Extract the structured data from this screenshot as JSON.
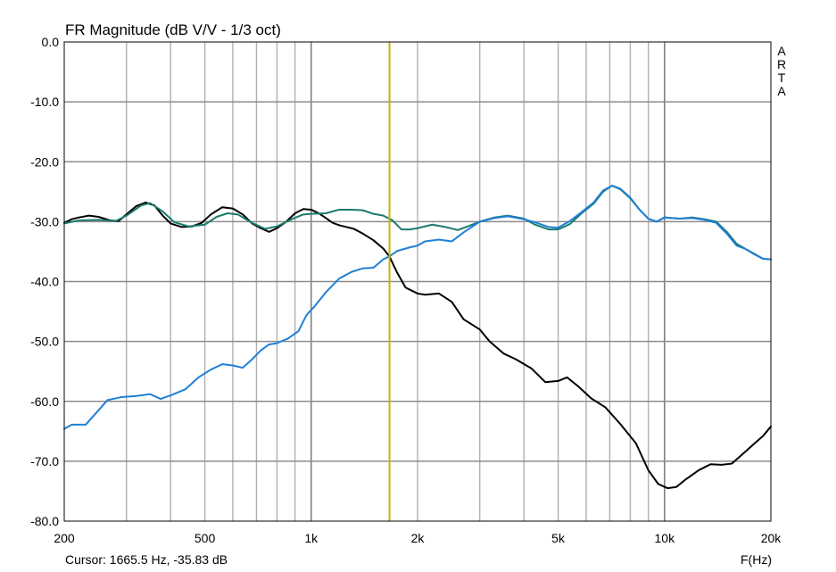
{
  "chart_data": {
    "type": "line",
    "title": "FR Magnitude (dB V/V - 1/3 oct)",
    "xlabel": "F(Hz)",
    "ylabel": "",
    "x_scale": "log",
    "xlim": [
      200,
      20000
    ],
    "ylim": [
      -80,
      0
    ],
    "grid": true,
    "x_ticks": [
      {
        "value": 200,
        "label": "200"
      },
      {
        "value": 500,
        "label": "500"
      },
      {
        "value": 1000,
        "label": "1k"
      },
      {
        "value": 2000,
        "label": "2k"
      },
      {
        "value": 5000,
        "label": "5k"
      },
      {
        "value": 10000,
        "label": "10k"
      },
      {
        "value": 20000,
        "label": "20k"
      }
    ],
    "y_ticks": [
      {
        "value": 0,
        "label": "0.0"
      },
      {
        "value": -10,
        "label": "-10.0"
      },
      {
        "value": -20,
        "label": "-20.0"
      },
      {
        "value": -30,
        "label": "-30.0"
      },
      {
        "value": -40,
        "label": "-40.0"
      },
      {
        "value": -50,
        "label": "-50.0"
      },
      {
        "value": -60,
        "label": "-60.0"
      },
      {
        "value": -70,
        "label": "-70.0"
      },
      {
        "value": -80,
        "label": "-80.0"
      }
    ],
    "side_label": [
      "A",
      "R",
      "T",
      "A"
    ],
    "cursor": {
      "freq": 1665.5,
      "label": "Cursor: 1665.5 Hz, -35.83 dB",
      "color": "#c8b400"
    },
    "series": [
      {
        "color": "#000000",
        "points": [
          [
            200,
            -30.2
          ],
          [
            210,
            -29.6
          ],
          [
            220,
            -29.3
          ],
          [
            235,
            -29.0
          ],
          [
            250,
            -29.2
          ],
          [
            270,
            -29.8
          ],
          [
            285,
            -29.9
          ],
          [
            300,
            -28.8
          ],
          [
            320,
            -27.4
          ],
          [
            340,
            -26.8
          ],
          [
            360,
            -27.3
          ],
          [
            380,
            -29.0
          ],
          [
            400,
            -30.3
          ],
          [
            430,
            -30.9
          ],
          [
            460,
            -30.8
          ],
          [
            490,
            -30.2
          ],
          [
            520,
            -28.8
          ],
          [
            560,
            -27.6
          ],
          [
            600,
            -27.8
          ],
          [
            640,
            -28.8
          ],
          [
            680,
            -30.3
          ],
          [
            720,
            -31.1
          ],
          [
            760,
            -31.7
          ],
          [
            800,
            -31.1
          ],
          [
            850,
            -30.0
          ],
          [
            900,
            -28.6
          ],
          [
            950,
            -27.9
          ],
          [
            1000,
            -28.0
          ],
          [
            1050,
            -28.6
          ],
          [
            1100,
            -29.4
          ],
          [
            1150,
            -30.2
          ],
          [
            1200,
            -30.6
          ],
          [
            1260,
            -30.9
          ],
          [
            1320,
            -31.2
          ],
          [
            1400,
            -32.0
          ],
          [
            1500,
            -33.1
          ],
          [
            1600,
            -34.5
          ],
          [
            1665,
            -35.8
          ],
          [
            1750,
            -38.5
          ],
          [
            1850,
            -41.0
          ],
          [
            2000,
            -42.0
          ],
          [
            2100,
            -42.2
          ],
          [
            2300,
            -42.0
          ],
          [
            2500,
            -43.4
          ],
          [
            2700,
            -46.3
          ],
          [
            3000,
            -48.0
          ],
          [
            3200,
            -50.0
          ],
          [
            3500,
            -52.0
          ],
          [
            3800,
            -53.0
          ],
          [
            4200,
            -54.5
          ],
          [
            4600,
            -56.8
          ],
          [
            5000,
            -56.6
          ],
          [
            5300,
            -56.0
          ],
          [
            5700,
            -57.5
          ],
          [
            6200,
            -59.5
          ],
          [
            6800,
            -61.0
          ],
          [
            7500,
            -63.8
          ],
          [
            8300,
            -67.0
          ],
          [
            9000,
            -71.5
          ],
          [
            9600,
            -73.8
          ],
          [
            10200,
            -74.5
          ],
          [
            10800,
            -74.3
          ],
          [
            11500,
            -73.0
          ],
          [
            12500,
            -71.5
          ],
          [
            13500,
            -70.5
          ],
          [
            14500,
            -70.6
          ],
          [
            15500,
            -70.4
          ],
          [
            16500,
            -69.0
          ],
          [
            18000,
            -67.0
          ],
          [
            19000,
            -65.8
          ],
          [
            20000,
            -64.2
          ]
        ]
      },
      {
        "color": "#1a7a6e",
        "points": [
          [
            200,
            -30.3
          ],
          [
            220,
            -29.8
          ],
          [
            250,
            -29.7
          ],
          [
            280,
            -29.9
          ],
          [
            300,
            -29.0
          ],
          [
            330,
            -27.3
          ],
          [
            350,
            -26.9
          ],
          [
            380,
            -28.3
          ],
          [
            410,
            -30.1
          ],
          [
            450,
            -30.8
          ],
          [
            500,
            -30.5
          ],
          [
            540,
            -29.2
          ],
          [
            580,
            -28.6
          ],
          [
            620,
            -28.8
          ],
          [
            680,
            -30.2
          ],
          [
            740,
            -31.2
          ],
          [
            800,
            -30.8
          ],
          [
            880,
            -29.6
          ],
          [
            950,
            -28.8
          ],
          [
            1000,
            -28.7
          ],
          [
            1100,
            -28.6
          ],
          [
            1200,
            -28.0
          ],
          [
            1300,
            -28.0
          ],
          [
            1400,
            -28.1
          ],
          [
            1500,
            -28.7
          ],
          [
            1600,
            -29.0
          ],
          [
            1700,
            -29.8
          ],
          [
            1800,
            -31.3
          ],
          [
            1900,
            -31.3
          ],
          [
            2000,
            -31.1
          ],
          [
            2200,
            -30.5
          ],
          [
            2400,
            -30.9
          ],
          [
            2600,
            -31.4
          ],
          [
            2800,
            -30.7
          ],
          [
            3000,
            -30.0
          ],
          [
            3300,
            -29.3
          ],
          [
            3600,
            -29.0
          ],
          [
            4000,
            -29.5
          ],
          [
            4300,
            -30.5
          ],
          [
            4700,
            -31.3
          ],
          [
            5000,
            -31.3
          ],
          [
            5400,
            -30.4
          ],
          [
            5800,
            -28.7
          ],
          [
            6300,
            -27.0
          ],
          [
            6700,
            -25.0
          ],
          [
            7100,
            -24.0
          ],
          [
            7500,
            -24.6
          ],
          [
            8000,
            -26.1
          ],
          [
            8500,
            -28.0
          ],
          [
            9000,
            -29.5
          ],
          [
            9500,
            -30.0
          ],
          [
            10000,
            -29.3
          ],
          [
            10500,
            -29.4
          ],
          [
            11000,
            -29.5
          ],
          [
            12000,
            -29.3
          ],
          [
            13000,
            -29.6
          ],
          [
            14000,
            -30.0
          ],
          [
            15000,
            -31.7
          ],
          [
            16000,
            -33.7
          ],
          [
            17000,
            -34.6
          ],
          [
            18000,
            -35.4
          ],
          [
            19000,
            -36.2
          ],
          [
            20000,
            -36.3
          ]
        ]
      },
      {
        "color": "#1f80d8",
        "points": [
          [
            200,
            -64.6
          ],
          [
            210,
            -63.9
          ],
          [
            230,
            -63.9
          ],
          [
            250,
            -61.5
          ],
          [
            265,
            -59.8
          ],
          [
            290,
            -59.3
          ],
          [
            320,
            -59.1
          ],
          [
            350,
            -58.8
          ],
          [
            375,
            -59.6
          ],
          [
            400,
            -59.0
          ],
          [
            440,
            -58.0
          ],
          [
            480,
            -56.0
          ],
          [
            520,
            -54.7
          ],
          [
            560,
            -53.8
          ],
          [
            600,
            -54.0
          ],
          [
            640,
            -54.4
          ],
          [
            680,
            -53.0
          ],
          [
            720,
            -51.5
          ],
          [
            760,
            -50.5
          ],
          [
            800,
            -50.3
          ],
          [
            860,
            -49.5
          ],
          [
            920,
            -48.3
          ],
          [
            970,
            -45.6
          ],
          [
            1020,
            -44.2
          ],
          [
            1100,
            -41.8
          ],
          [
            1200,
            -39.5
          ],
          [
            1300,
            -38.4
          ],
          [
            1400,
            -37.8
          ],
          [
            1500,
            -37.7
          ],
          [
            1600,
            -36.3
          ],
          [
            1665,
            -35.8
          ],
          [
            1750,
            -34.9
          ],
          [
            1900,
            -34.3
          ],
          [
            2000,
            -34.0
          ],
          [
            2100,
            -33.3
          ],
          [
            2300,
            -33.0
          ],
          [
            2500,
            -33.3
          ],
          [
            2700,
            -31.8
          ],
          [
            3000,
            -30.0
          ],
          [
            3300,
            -29.4
          ],
          [
            3600,
            -29.1
          ],
          [
            4000,
            -29.6
          ],
          [
            4300,
            -30.1
          ],
          [
            4700,
            -30.9
          ],
          [
            5000,
            -31.0
          ],
          [
            5400,
            -29.9
          ],
          [
            5800,
            -28.5
          ],
          [
            6300,
            -26.8
          ],
          [
            6700,
            -24.8
          ],
          [
            7100,
            -24.0
          ],
          [
            7500,
            -24.5
          ],
          [
            8000,
            -26.0
          ],
          [
            8500,
            -28.0
          ],
          [
            9000,
            -29.5
          ],
          [
            9500,
            -30.0
          ],
          [
            10000,
            -29.3
          ],
          [
            10500,
            -29.4
          ],
          [
            11000,
            -29.5
          ],
          [
            12000,
            -29.4
          ],
          [
            13000,
            -29.7
          ],
          [
            14000,
            -30.2
          ],
          [
            15000,
            -32.0
          ],
          [
            16000,
            -34.0
          ],
          [
            17000,
            -34.6
          ],
          [
            18000,
            -35.5
          ],
          [
            19000,
            -36.2
          ],
          [
            20000,
            -36.3
          ]
        ]
      }
    ]
  }
}
